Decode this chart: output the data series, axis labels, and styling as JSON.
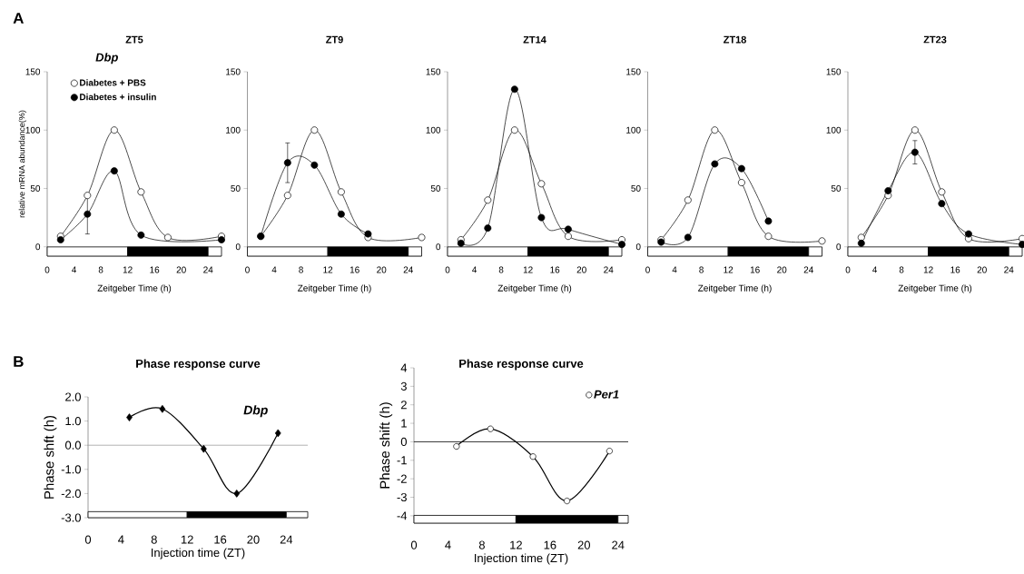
{
  "chart_data": [
    {
      "type": "line",
      "title": "ZT5",
      "xlabel": "Zeitgeber Time (h)",
      "ylabel": "relative mRNA abundance(%)",
      "annotations": [
        "A",
        "Dbp"
      ],
      "xlim": [
        0,
        26
      ],
      "xticks": [
        0,
        4,
        8,
        12,
        16,
        20,
        24
      ],
      "ylim": [
        -8,
        150
      ],
      "yticks": [
        0,
        50,
        100,
        150
      ],
      "marker": "circle",
      "legend": "top left",
      "bands": [
        {
          "axis": "x",
          "from": 0,
          "to": 12,
          "color": "#ffffff"
        },
        {
          "axis": "x",
          "from": 12,
          "to": 24,
          "color": "#000000"
        },
        {
          "axis": "x",
          "from": 24,
          "to": 26,
          "color": "#ffffff"
        }
      ],
      "series": [
        {
          "name": "Diabetes + PBS",
          "color": "#ffffff",
          "x": [
            2,
            6,
            10,
            14,
            18,
            26
          ],
          "values": [
            9,
            44,
            100,
            47,
            8,
            9
          ]
        },
        {
          "name": "Diabetes + insulin",
          "color": "#000000",
          "x": [
            2,
            6,
            10,
            14,
            26
          ],
          "values": [
            6,
            28,
            65,
            10,
            6
          ],
          "errors": [
            null,
            17,
            null,
            null,
            null
          ]
        }
      ]
    },
    {
      "type": "line",
      "title": "ZT9",
      "xlabel": "Zeitgeber Time (h)",
      "xlim": [
        0,
        26
      ],
      "xticks": [
        0,
        4,
        8,
        12,
        16,
        20,
        24
      ],
      "ylim": [
        -8,
        150
      ],
      "yticks": [
        0,
        50,
        100,
        150
      ],
      "marker": "circle",
      "bands": [
        {
          "axis": "x",
          "from": 0,
          "to": 12,
          "color": "#ffffff"
        },
        {
          "axis": "x",
          "from": 12,
          "to": 24,
          "color": "#000000"
        },
        {
          "axis": "x",
          "from": 24,
          "to": 26,
          "color": "#ffffff"
        }
      ],
      "series": [
        {
          "color": "#ffffff",
          "x": [
            2,
            6,
            10,
            14,
            18,
            26
          ],
          "values": [
            9,
            44,
            100,
            47,
            8,
            8
          ]
        },
        {
          "color": "#000000",
          "x": [
            2,
            6,
            10,
            14,
            18
          ],
          "values": [
            9,
            72,
            70,
            28,
            11
          ],
          "errors": [
            null,
            17,
            null,
            null,
            null
          ]
        }
      ]
    },
    {
      "type": "line",
      "title": "ZT14",
      "xlabel": "Zeitgeber Time (h)",
      "xlim": [
        0,
        26
      ],
      "xticks": [
        0,
        4,
        8,
        12,
        16,
        20,
        24
      ],
      "ylim": [
        -8,
        150
      ],
      "yticks": [
        0,
        50,
        100,
        150
      ],
      "marker": "circle",
      "bands": [
        {
          "axis": "x",
          "from": 0,
          "to": 12,
          "color": "#ffffff"
        },
        {
          "axis": "x",
          "from": 12,
          "to": 24,
          "color": "#000000"
        },
        {
          "axis": "x",
          "from": 24,
          "to": 26,
          "color": "#ffffff"
        }
      ],
      "series": [
        {
          "color": "#ffffff",
          "x": [
            2,
            6,
            10,
            14,
            18,
            26
          ],
          "values": [
            6,
            40,
            100,
            54,
            9,
            6
          ]
        },
        {
          "color": "#000000",
          "x": [
            2,
            6,
            10,
            14,
            18,
            26
          ],
          "values": [
            3,
            16,
            135,
            25,
            15,
            2
          ]
        }
      ]
    },
    {
      "type": "line",
      "title": "ZT18",
      "xlabel": "Zeitgeber Time (h)",
      "xlim": [
        0,
        26
      ],
      "xticks": [
        0,
        4,
        8,
        12,
        16,
        20,
        24
      ],
      "ylim": [
        -8,
        150
      ],
      "yticks": [
        0,
        50,
        100,
        150
      ],
      "marker": "circle",
      "bands": [
        {
          "axis": "x",
          "from": 0,
          "to": 12,
          "color": "#ffffff"
        },
        {
          "axis": "x",
          "from": 12,
          "to": 24,
          "color": "#000000"
        },
        {
          "axis": "x",
          "from": 24,
          "to": 26,
          "color": "#ffffff"
        }
      ],
      "series": [
        {
          "color": "#ffffff",
          "x": [
            2,
            6,
            10,
            14,
            18,
            26
          ],
          "values": [
            6,
            40,
            100,
            55,
            9,
            5
          ]
        },
        {
          "color": "#000000",
          "x": [
            2,
            6,
            10,
            14,
            18
          ],
          "values": [
            4,
            8,
            71,
            67,
            22
          ]
        }
      ]
    },
    {
      "type": "line",
      "title": "ZT23",
      "xlabel": "Zeitgeber Time (h)",
      "xlim": [
        0,
        26
      ],
      "xticks": [
        0,
        4,
        8,
        12,
        16,
        20,
        24
      ],
      "ylim": [
        -8,
        150
      ],
      "yticks": [
        0,
        50,
        100,
        150
      ],
      "marker": "circle",
      "bands": [
        {
          "axis": "x",
          "from": 0,
          "to": 12,
          "color": "#ffffff"
        },
        {
          "axis": "x",
          "from": 12,
          "to": 24,
          "color": "#000000"
        },
        {
          "axis": "x",
          "from": 24,
          "to": 26,
          "color": "#ffffff"
        }
      ],
      "series": [
        {
          "color": "#ffffff",
          "x": [
            2,
            6,
            10,
            14,
            18,
            26
          ],
          "values": [
            8,
            44,
            100,
            47,
            7,
            7
          ]
        },
        {
          "color": "#000000",
          "x": [
            2,
            6,
            10,
            14,
            18,
            26
          ],
          "values": [
            3,
            48,
            81,
            37,
            11,
            2
          ],
          "errors": [
            null,
            null,
            10,
            null,
            null,
            null
          ]
        }
      ]
    },
    {
      "type": "line",
      "title": "Phase response curve",
      "xlabel": "Injection  time (ZT)",
      "ylabel": "Phase shft (h)",
      "annotations": [
        "B",
        "Dbp"
      ],
      "xlim": [
        0,
        26.6
      ],
      "xticks": [
        0,
        4,
        8,
        12,
        16,
        20,
        24
      ],
      "ylim": [
        -3,
        2
      ],
      "yticks": [
        {
          "value": -3,
          "label": "-3.0"
        },
        {
          "value": -2,
          "label": "-2.0"
        },
        {
          "value": -1,
          "label": "-1.0"
        },
        {
          "value": 0,
          "label": "0.0"
        },
        {
          "value": 1,
          "label": "1.0"
        },
        {
          "value": 2,
          "label": "2.0"
        }
      ],
      "marker": "diamond",
      "bands": [
        {
          "axis": "x",
          "from": 0,
          "to": 12,
          "color": "#ffffff"
        },
        {
          "axis": "x",
          "from": 12,
          "to": 24,
          "color": "#000000"
        },
        {
          "axis": "x",
          "from": 24,
          "to": 26.6,
          "color": "#ffffff"
        }
      ],
      "ref_lines": [
        {
          "axis": "y",
          "value": 0,
          "color": "#a0a0a0"
        }
      ],
      "series": [
        {
          "color": "#000000",
          "x": [
            5,
            9,
            14,
            18,
            23
          ],
          "values": [
            1.15,
            1.5,
            -0.15,
            -2.0,
            0.5
          ]
        }
      ]
    },
    {
      "type": "line",
      "title": "Phase response curve",
      "xlabel": "Injection  time (ZT)",
      "ylabel": "Phase shift (h)",
      "xlim": [
        0,
        25.2
      ],
      "xticks": [
        0,
        4,
        8,
        12,
        16,
        20,
        24
      ],
      "ylim": [
        -4.4,
        4
      ],
      "yticks": [
        -4,
        -3,
        -2,
        -1,
        0,
        1,
        2,
        3,
        4
      ],
      "marker": "circle",
      "legend": "top right",
      "bands": [
        {
          "axis": "x",
          "from": 0,
          "to": 12,
          "color": "#ffffff"
        },
        {
          "axis": "x",
          "from": 12,
          "to": 24,
          "color": "#000000"
        },
        {
          "axis": "x",
          "from": 24,
          "to": 25.2,
          "color": "#ffffff"
        }
      ],
      "ref_lines": [
        {
          "axis": "y",
          "value": 0,
          "color": "#000000"
        }
      ],
      "series": [
        {
          "name": "*Per1*",
          "color": "#ffffff",
          "x": [
            5,
            9,
            14,
            18,
            23
          ],
          "values": [
            -0.25,
            0.7,
            -0.8,
            -3.2,
            -0.5
          ]
        }
      ]
    }
  ]
}
